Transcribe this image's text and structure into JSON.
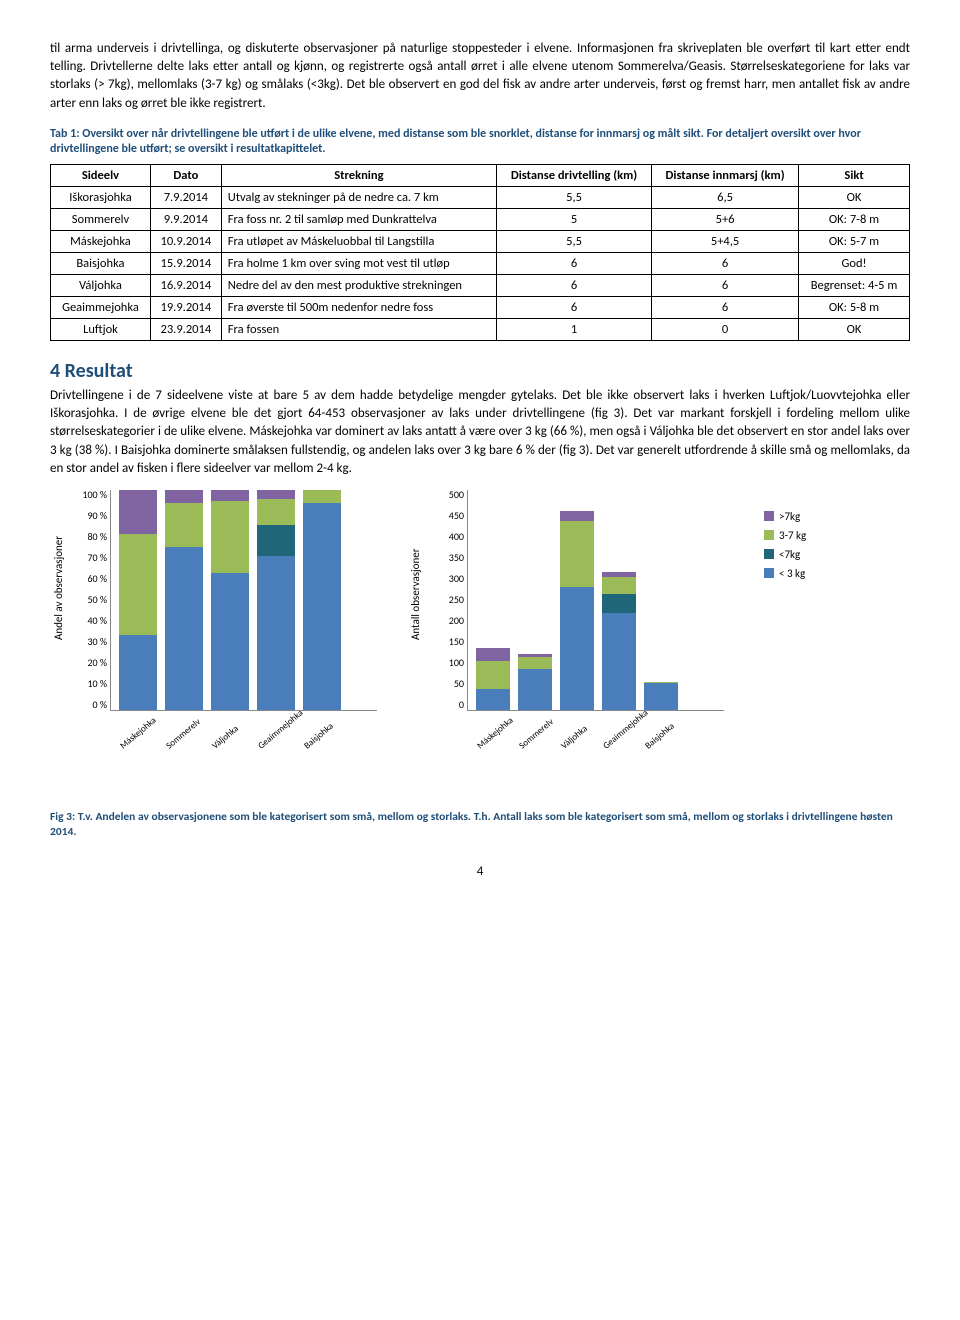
{
  "para1": "til arma underveis i drivtellinga, og diskuterte observasjoner på naturlige stoppesteder i elvene. Informasjonen fra skriveplaten ble overført til kart etter endt telling. Drivtellerne delte laks etter antall og kjønn, og registrerte også antall ørret i alle elvene utenom Sommerelva/Geasis. Størrelseskategoriene for laks var storlaks (> 7kg), mellomlaks (3-7 kg) og smålaks (<3kg). Det ble observert en god del fisk av andre arter underveis, først og fremst harr, men antallet fisk av andre arter enn laks og ørret ble ikke registrert.",
  "tab1_caption": "Tab 1: Oversikt over når drivtellingene ble utført i de ulike elvene, med distanse som ble snorklet, distanse for innmarsj og målt sikt. For detaljert oversikt over hvor drivtellingene ble utført; se oversikt i resultatkapittelet.",
  "table": {
    "headers": [
      "Sideelv",
      "Dato",
      "Strekning",
      "Distanse drivtelling (km)",
      "Distanse innmarsj (km)",
      "Sikt"
    ],
    "rows": [
      [
        "Iškorasjohka",
        "7.9.2014",
        "Utvalg av stekninger på de nedre ca. 7 km",
        "5,5",
        "6,5",
        "OK"
      ],
      [
        "Sommerelv",
        "9.9.2014",
        "Fra foss nr. 2 til samløp med Dunkrattelva",
        "5",
        "5+6",
        "OK: 7-8 m"
      ],
      [
        "Máskejohka",
        "10.9.2014",
        "Fra utløpet av Máskeluobbal til Langstilla",
        "5,5",
        "5+4,5",
        "OK: 5-7 m"
      ],
      [
        "Baisjohka",
        "15.9.2014",
        "Fra holme 1 km over sving mot vest til utløp",
        "6",
        "6",
        "God!"
      ],
      [
        "Váljohka",
        "16.9.2014",
        "Nedre del av den mest produktive strekningen",
        "6",
        "6",
        "Begrenset: 4-5 m"
      ],
      [
        "Geaimmejohka",
        "19.9.2014",
        "Fra øverste til 500m nedenfor nedre foss",
        "6",
        "6",
        "OK: 5-8 m"
      ],
      [
        "Luftjok",
        "23.9.2014",
        "Fra fossen",
        "1",
        "0",
        "OK"
      ]
    ]
  },
  "section_title": "4 Resultat",
  "para2": "Drivtellingene i de 7 sideelvene viste at bare 5 av dem hadde betydelige mengder gytelaks. Det ble ikke observert laks i hverken Luftjok/Luovvtejohka eller Iškorasjohka. I de øvrige elvene ble det gjort 64-453 observasjoner av laks under drivtellingene (fig 3). Det var markant forskjell i fordeling mellom ulike størrelseskategorier i de ulike elvene. Máskejohka var dominert av laks antatt å være over 3 kg (66 %), men også i Váljohka ble det observert en stor andel laks over 3 kg (38 %). I Baisjohka dominerte smålaksen fullstendig, og andelen laks over 3 kg bare 6 % der (fig 3). Det var generelt utfordrende å skille små og mellomlaks, da en stor andel av fisken i flere sideelver var mellom 2-4 kg.",
  "colors": {
    "blue": "#4a7ebb",
    "green": "#9bbb59",
    "darkteal": "#1f6679",
    "purple": "#8064a2",
    "grid": "#888888",
    "accent_text": "#1f4e79"
  },
  "chart_left": {
    "y_title": "Andel av observasjoner",
    "y_ticks": [
      "100 %",
      "90 %",
      "80 %",
      "70 %",
      "60 %",
      "50 %",
      "40 %",
      "30 %",
      "20 %",
      "10 %",
      "0 %"
    ],
    "categories": [
      "Máskejohka",
      "Sommerelv",
      "Váljohka",
      "Geaimmejohka",
      "Baisjohka"
    ],
    "series": [
      "< 3 kg",
      "<7kg",
      "3-7 kg",
      ">7kg"
    ],
    "stacks_pct": [
      {
        "lt3": 34,
        "lt7": 0,
        "m37": 46,
        "gt7": 20
      },
      {
        "lt3": 74,
        "lt7": 0,
        "m37": 20,
        "gt7": 6
      },
      {
        "lt3": 62,
        "lt7": 0,
        "m37": 33,
        "gt7": 5
      },
      {
        "lt3": 70,
        "lt7": 14,
        "m37": 12,
        "gt7": 4
      },
      {
        "lt3": 94,
        "lt7": 0,
        "m37": 6,
        "gt7": 0
      }
    ]
  },
  "chart_right": {
    "y_title": "Antall observasjoner",
    "y_ticks": [
      "500",
      "450",
      "400",
      "350",
      "300",
      "250",
      "200",
      "150",
      "100",
      "50",
      "0"
    ],
    "y_max": 500,
    "categories": [
      "Máskejohka",
      "Sommerelv",
      "Váljohka",
      "Geaimmejohka",
      "Baisjohka"
    ],
    "stacks_abs": [
      {
        "lt3": 48,
        "lt7": 0,
        "m37": 64,
        "gt7": 28
      },
      {
        "lt3": 94,
        "lt7": 0,
        "m37": 26,
        "gt7": 8
      },
      {
        "lt3": 280,
        "lt7": 0,
        "m37": 150,
        "gt7": 23
      },
      {
        "lt3": 220,
        "lt7": 44,
        "m37": 38,
        "gt7": 12
      },
      {
        "lt3": 60,
        "lt7": 0,
        "m37": 4,
        "gt7": 0
      }
    ]
  },
  "legend": [
    {
      "label": ">7kg",
      "color_key": "purple"
    },
    {
      "label": "3-7 kg",
      "color_key": "green"
    },
    {
      "label": "<7kg",
      "color_key": "darkteal"
    },
    {
      "label": "< 3 kg",
      "color_key": "blue"
    }
  ],
  "fig_caption": "Fig 3: T.v. Andelen av observasjonene som ble kategorisert som små, mellom og storlaks. T.h. Antall laks som ble kategorisert som små, mellom og storlaks i drivtellingene høsten 2014.",
  "page_number": "4"
}
